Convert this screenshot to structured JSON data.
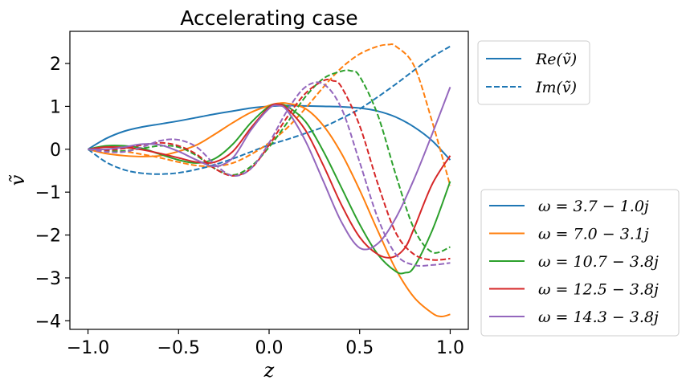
{
  "chart_data": {
    "type": "line",
    "title": "Accelerating case",
    "xlabel": "z",
    "ylabel": "ṽ",
    "xlim": [
      -1.1,
      1.1
    ],
    "ylim": [
      -4.2,
      2.75
    ],
    "xticks": [
      -1.0,
      -0.5,
      0.0,
      0.5,
      1.0
    ],
    "xtick_labels": [
      "−1.0",
      "−0.5",
      "0.0",
      "0.5",
      "1.0"
    ],
    "yticks": [
      -4,
      -3,
      -2,
      -1,
      0,
      1,
      2
    ],
    "ytick_labels": [
      "−4",
      "−3",
      "−2",
      "−1",
      "0",
      "1",
      "2"
    ],
    "grid": false,
    "line_style_legend": {
      "placement": "top-right outside",
      "entries": [
        {
          "label": "Re(ṽ)",
          "dash": "solid",
          "color": "#1f77b4"
        },
        {
          "label": "Im(ṽ)",
          "dash": "dashed",
          "color": "#1f77b4"
        }
      ]
    },
    "mode_legend": {
      "placement": "bottom-right outside",
      "entries": [
        {
          "label": "ω = 3.7 − 1.0j",
          "color": "#1f77b4"
        },
        {
          "label": "ω = 7.0 − 3.1j",
          "color": "#ff7f0e"
        },
        {
          "label": "ω = 10.7 − 3.8j",
          "color": "#2ca02c"
        },
        {
          "label": "ω = 12.5 − 3.8j",
          "color": "#d62728"
        },
        {
          "label": "ω = 14.3 − 3.8j",
          "color": "#9467bd"
        }
      ]
    },
    "series": [
      {
        "mode": "ω = 3.7 − 1.0j",
        "part": "Re",
        "color": "#1f77b4",
        "dash": "solid",
        "x": [
          -1.0,
          -0.9,
          -0.8,
          -0.7,
          -0.6,
          -0.5,
          -0.4,
          -0.3,
          -0.2,
          -0.1,
          0.0,
          0.1,
          0.2,
          0.3,
          0.4,
          0.5,
          0.6,
          0.7,
          0.8,
          0.9,
          1.0
        ],
        "y": [
          0.0,
          0.25,
          0.42,
          0.52,
          0.59,
          0.66,
          0.74,
          0.82,
          0.89,
          0.96,
          1.0,
          1.02,
          1.01,
          1.0,
          0.99,
          0.96,
          0.89,
          0.75,
          0.52,
          0.2,
          -0.25
        ]
      },
      {
        "mode": "ω = 3.7 − 1.0j",
        "part": "Im",
        "color": "#1f77b4",
        "dash": "dashed",
        "x": [
          -1.0,
          -0.9,
          -0.8,
          -0.7,
          -0.6,
          -0.5,
          -0.4,
          -0.3,
          -0.2,
          -0.1,
          0.0,
          0.1,
          0.2,
          0.3,
          0.4,
          0.5,
          0.6,
          0.7,
          0.8,
          0.9,
          1.0
        ],
        "y": [
          0.0,
          -0.3,
          -0.48,
          -0.56,
          -0.58,
          -0.55,
          -0.47,
          -0.36,
          -0.22,
          -0.06,
          0.1,
          0.23,
          0.37,
          0.52,
          0.72,
          0.94,
          1.22,
          1.52,
          1.84,
          2.15,
          2.4
        ]
      },
      {
        "mode": "ω = 7.0 − 3.1j",
        "part": "Re",
        "color": "#ff7f0e",
        "dash": "solid",
        "x": [
          -1.0,
          -0.9,
          -0.8,
          -0.7,
          -0.6,
          -0.5,
          -0.4,
          -0.3,
          -0.2,
          -0.1,
          0.0,
          0.05,
          0.1,
          0.2,
          0.3,
          0.4,
          0.5,
          0.6,
          0.7,
          0.8,
          0.9,
          0.95,
          1.0
        ],
        "y": [
          0.0,
          -0.1,
          -0.15,
          -0.17,
          -0.15,
          -0.05,
          0.1,
          0.35,
          0.62,
          0.86,
          1.02,
          1.07,
          1.07,
          0.95,
          0.55,
          -0.1,
          -0.95,
          -1.9,
          -2.8,
          -3.45,
          -3.82,
          -3.9,
          -3.85
        ]
      },
      {
        "mode": "ω = 7.0 − 3.1j",
        "part": "Im",
        "color": "#ff7f0e",
        "dash": "dashed",
        "x": [
          -1.0,
          -0.9,
          -0.8,
          -0.7,
          -0.6,
          -0.5,
          -0.4,
          -0.3,
          -0.2,
          -0.1,
          0.0,
          0.1,
          0.2,
          0.3,
          0.4,
          0.5,
          0.6,
          0.66,
          0.7,
          0.8,
          0.9,
          1.0
        ],
        "y": [
          0.0,
          -0.02,
          -0.05,
          -0.12,
          -0.2,
          -0.3,
          -0.38,
          -0.4,
          -0.32,
          -0.12,
          0.15,
          0.5,
          0.95,
          1.45,
          1.9,
          2.22,
          2.4,
          2.44,
          2.4,
          1.95,
          0.65,
          -0.85
        ]
      },
      {
        "mode": "ω = 10.7 − 3.8j",
        "part": "Re",
        "color": "#2ca02c",
        "dash": "solid",
        "x": [
          -1.0,
          -0.9,
          -0.8,
          -0.7,
          -0.6,
          -0.5,
          -0.4,
          -0.3,
          -0.2,
          -0.1,
          0.0,
          0.05,
          0.1,
          0.2,
          0.3,
          0.4,
          0.5,
          0.6,
          0.7,
          0.75,
          0.8,
          0.9,
          1.0
        ],
        "y": [
          0.0,
          0.08,
          0.08,
          0.02,
          -0.12,
          -0.25,
          -0.32,
          -0.22,
          0.12,
          0.62,
          1.0,
          1.04,
          1.0,
          0.65,
          -0.05,
          -0.9,
          -1.75,
          -2.45,
          -2.85,
          -2.88,
          -2.75,
          -1.9,
          -0.75
        ]
      },
      {
        "mode": "ω = 10.7 − 3.8j",
        "part": "Im",
        "color": "#2ca02c",
        "dash": "dashed",
        "x": [
          -1.0,
          -0.9,
          -0.8,
          -0.7,
          -0.6,
          -0.5,
          -0.4,
          -0.3,
          -0.2,
          -0.1,
          0.0,
          0.1,
          0.2,
          0.3,
          0.4,
          0.45,
          0.5,
          0.6,
          0.7,
          0.8,
          0.9,
          1.0
        ],
        "y": [
          0.0,
          -0.04,
          -0.04,
          0.02,
          0.08,
          0.05,
          -0.15,
          -0.45,
          -0.6,
          -0.4,
          0.05,
          0.62,
          1.22,
          1.65,
          1.82,
          1.83,
          1.7,
          0.8,
          -0.6,
          -1.85,
          -2.4,
          -2.28
        ]
      },
      {
        "mode": "ω = 12.5 − 3.8j",
        "part": "Re",
        "color": "#d62728",
        "dash": "solid",
        "x": [
          -1.0,
          -0.9,
          -0.8,
          -0.7,
          -0.6,
          -0.5,
          -0.4,
          -0.3,
          -0.2,
          -0.1,
          0.0,
          0.05,
          0.1,
          0.2,
          0.3,
          0.4,
          0.5,
          0.6,
          0.68,
          0.75,
          0.8,
          0.9,
          1.0
        ],
        "y": [
          0.0,
          0.05,
          0.04,
          -0.01,
          -0.1,
          -0.2,
          -0.3,
          -0.3,
          -0.05,
          0.5,
          0.98,
          1.05,
          0.95,
          0.45,
          -0.38,
          -1.3,
          -2.05,
          -2.45,
          -2.52,
          -2.3,
          -1.85,
          -0.82,
          -0.15
        ]
      },
      {
        "mode": "ω = 12.5 − 3.8j",
        "part": "Im",
        "color": "#d62728",
        "dash": "dashed",
        "x": [
          -1.0,
          -0.9,
          -0.8,
          -0.7,
          -0.6,
          -0.5,
          -0.4,
          -0.3,
          -0.2,
          -0.1,
          0.0,
          0.1,
          0.2,
          0.3,
          0.35,
          0.4,
          0.5,
          0.6,
          0.7,
          0.8,
          0.9,
          1.0
        ],
        "y": [
          0.0,
          -0.02,
          0.02,
          0.1,
          0.15,
          0.08,
          -0.12,
          -0.45,
          -0.62,
          -0.45,
          0.1,
          0.75,
          1.3,
          1.6,
          1.6,
          1.45,
          0.55,
          -0.8,
          -1.95,
          -2.45,
          -2.58,
          -2.55
        ]
      },
      {
        "mode": "ω = 14.3 − 3.8j",
        "part": "Re",
        "color": "#9467bd",
        "dash": "solid",
        "x": [
          -1.0,
          -0.9,
          -0.8,
          -0.7,
          -0.6,
          -0.5,
          -0.4,
          -0.3,
          -0.2,
          -0.1,
          0.0,
          0.05,
          0.1,
          0.2,
          0.3,
          0.4,
          0.5,
          0.6,
          0.7,
          0.8,
          0.9,
          1.0
        ],
        "y": [
          0.0,
          0.0,
          0.05,
          0.12,
          0.1,
          -0.05,
          -0.25,
          -0.4,
          -0.2,
          0.45,
          0.95,
          1.02,
          0.9,
          0.2,
          -0.75,
          -1.7,
          -2.3,
          -2.2,
          -1.6,
          -0.7,
          0.35,
          1.45
        ]
      },
      {
        "mode": "ω = 14.3 − 3.8j",
        "part": "Im",
        "color": "#9467bd",
        "dash": "dashed",
        "x": [
          -1.0,
          -0.9,
          -0.8,
          -0.7,
          -0.6,
          -0.5,
          -0.4,
          -0.3,
          -0.2,
          -0.1,
          0.0,
          0.1,
          0.2,
          0.3,
          0.4,
          0.5,
          0.6,
          0.7,
          0.8,
          0.9,
          1.0
        ],
        "y": [
          0.0,
          -0.06,
          -0.06,
          0.05,
          0.2,
          0.22,
          0.05,
          -0.35,
          -0.62,
          -0.45,
          0.15,
          0.9,
          1.45,
          1.52,
          0.95,
          -0.3,
          -1.6,
          -2.45,
          -2.7,
          -2.7,
          -2.65
        ]
      }
    ]
  }
}
